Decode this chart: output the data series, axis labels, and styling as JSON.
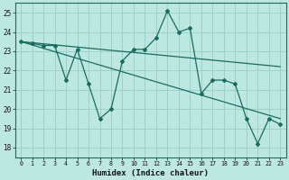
{
  "xlabel": "Humidex (Indice chaleur)",
  "xlim": [
    -0.5,
    23.5
  ],
  "ylim": [
    17.5,
    25.5
  ],
  "xticks": [
    0,
    1,
    2,
    3,
    4,
    5,
    6,
    7,
    8,
    9,
    10,
    11,
    12,
    13,
    14,
    15,
    16,
    17,
    18,
    19,
    20,
    21,
    22,
    23
  ],
  "yticks": [
    18,
    19,
    20,
    21,
    22,
    23,
    24,
    25
  ],
  "bg_color": "#bde8e2",
  "grid_color": "#9ecfca",
  "line_color": "#1a6b60",
  "zigzag_x": [
    0,
    1,
    2,
    3,
    4,
    5,
    6,
    7,
    8,
    9,
    10,
    11,
    12,
    13,
    14,
    15,
    16,
    17,
    18,
    19,
    20,
    21,
    22,
    23
  ],
  "zigzag_y": [
    23.5,
    23.4,
    23.3,
    23.3,
    21.5,
    23.1,
    21.3,
    19.5,
    20.0,
    22.5,
    23.1,
    23.1,
    23.7,
    25.1,
    24.0,
    24.2,
    20.8,
    21.5,
    21.5,
    21.3,
    19.5,
    18.2,
    19.5,
    19.2
  ],
  "upper_trend_x": [
    0,
    23
  ],
  "upper_trend_y": [
    23.5,
    22.2
  ],
  "lower_trend_x": [
    0,
    23
  ],
  "lower_trend_y": [
    23.5,
    19.5
  ]
}
